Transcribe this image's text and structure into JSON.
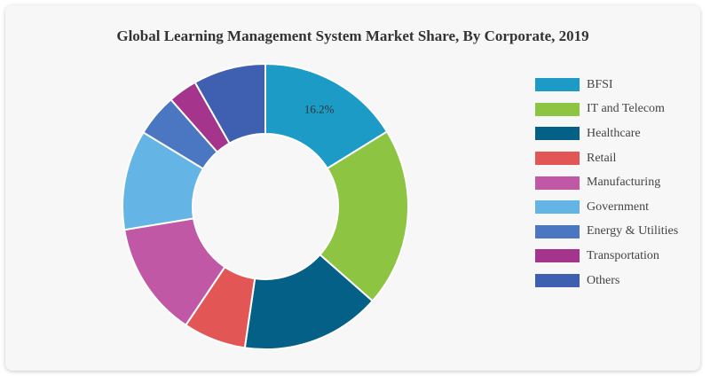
{
  "chart_data": {
    "type": "pie",
    "variant": "donut",
    "title": "Global Learning Management System Market Share, By Corporate, 2019",
    "legend_position": "right",
    "categories": [
      "BFSI",
      "IT and Telecom",
      "Healthcare",
      "Retail",
      "Manufacturing",
      "Government",
      "Energy & Utilities",
      "Transportation",
      "Others"
    ],
    "values": [
      16.2,
      20.3,
      15.8,
      7.1,
      13.0,
      11.3,
      4.8,
      3.3,
      8.2
    ],
    "colors": [
      "#1b9bc6",
      "#8dc441",
      "#056087",
      "#e35656",
      "#c158a6",
      "#64b5e6",
      "#4a76c2",
      "#a4348c",
      "#3f5fb0"
    ],
    "data_labels": [
      "16.2%",
      "",
      "",
      "",
      "",
      "",
      "",
      "",
      ""
    ]
  }
}
